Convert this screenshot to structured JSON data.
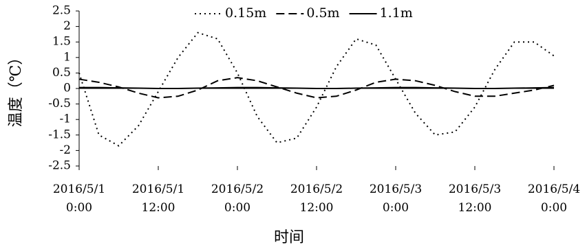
{
  "chart_data": {
    "type": "line",
    "x_label": "时间",
    "y_label": "温度（℃）",
    "x": [
      0,
      3,
      6,
      9,
      12,
      15,
      18,
      21,
      24,
      27,
      30,
      33,
      36,
      39,
      42,
      45,
      48,
      51,
      54,
      57,
      60,
      63,
      66,
      69,
      72
    ],
    "series": [
      {
        "name": "0.15m",
        "color": "#000000",
        "dash": "dotted",
        "values": [
          0.5,
          -1.5,
          -1.85,
          -1.2,
          -0.1,
          1.0,
          1.8,
          1.6,
          0.5,
          -0.9,
          -1.75,
          -1.6,
          -0.6,
          0.7,
          1.6,
          1.4,
          0.3,
          -0.8,
          -1.5,
          -1.4,
          -0.6,
          0.6,
          1.5,
          1.5,
          1.05
        ]
      },
      {
        "name": "0.5m",
        "color": "#000000",
        "dash": "dashed",
        "values": [
          0.3,
          0.2,
          0.05,
          -0.15,
          -0.3,
          -0.25,
          -0.05,
          0.25,
          0.35,
          0.25,
          0.05,
          -0.15,
          -0.3,
          -0.25,
          -0.05,
          0.2,
          0.3,
          0.25,
          0.1,
          -0.1,
          -0.25,
          -0.25,
          -0.15,
          -0.05,
          0.1
        ]
      },
      {
        "name": "1.1m",
        "color": "#000000",
        "dash": "solid",
        "values": [
          0.03,
          0.03,
          0.02,
          0.01,
          0,
          0,
          0.01,
          0.02,
          0.03,
          0.03,
          0.02,
          0.01,
          0,
          0,
          0.01,
          0.02,
          0.03,
          0.03,
          0.02,
          0.01,
          0,
          0,
          0.01,
          0.02,
          0.03
        ]
      }
    ],
    "xlim": [
      0,
      72
    ],
    "xticks": [
      {
        "value": 0,
        "label": "2016/5/1 0:00"
      },
      {
        "value": 12,
        "label": "2016/5/1 12:00"
      },
      {
        "value": 24,
        "label": "2016/5/2 0:00"
      },
      {
        "value": 36,
        "label": "2016/5/2 12:00"
      },
      {
        "value": 48,
        "label": "2016/5/3 0:00"
      },
      {
        "value": 60,
        "label": "2016/5/3 12:00"
      },
      {
        "value": 72,
        "label": "2016/5/4 0:00"
      }
    ],
    "ylim": [
      -2.5,
      2.5
    ],
    "yticks": [
      -2.5,
      -2,
      -1.5,
      -1,
      -0.5,
      0,
      0.5,
      1,
      1.5,
      2,
      2.5
    ],
    "grid": false,
    "legend": "top"
  }
}
